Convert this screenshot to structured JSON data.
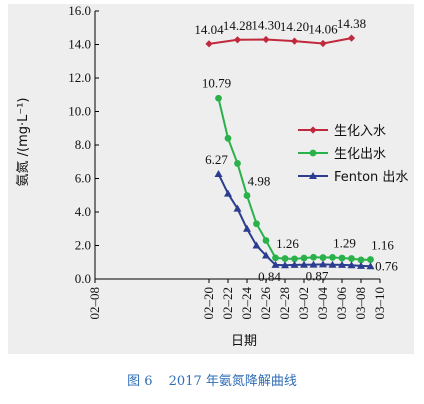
{
  "figure": {
    "caption_number": "图 6",
    "caption_text": "2017 年氨氮降解曲线"
  },
  "chart_data": {
    "type": "line",
    "xlabel": "日期",
    "ylabel": "氨氮 /(mg·L⁻¹)",
    "ylim": [
      0,
      16
    ],
    "yticks": [
      "0.0",
      "2.0",
      "4.0",
      "6.0",
      "8.0",
      "10.0",
      "12.0",
      "14.0",
      "16.0"
    ],
    "x_ticks": [
      "02–08",
      "02–20",
      "02–22",
      "02–24",
      "02–26",
      "02–28",
      "03–02",
      "03–04",
      "03–06",
      "03–08",
      "03–10"
    ],
    "x_tick_positions": [
      -12,
      0,
      2,
      4,
      6,
      8,
      10,
      12,
      14,
      16,
      18
    ],
    "xlim": [
      -12,
      18
    ],
    "series": [
      {
        "name": "生化入水",
        "color": "#c0283c",
        "marker": "diamond",
        "x": [
          0,
          3,
          6,
          9,
          12,
          15
        ],
        "y": [
          14.04,
          14.28,
          14.3,
          14.2,
          14.06,
          14.38
        ],
        "labels": [
          {
            "i": 0,
            "text": "14.04"
          },
          {
            "i": 1,
            "text": "14.28"
          },
          {
            "i": 2,
            "text": "14.30"
          },
          {
            "i": 3,
            "text": "14.20"
          },
          {
            "i": 4,
            "text": "14.06"
          },
          {
            "i": 5,
            "text": "14.38"
          }
        ]
      },
      {
        "name": "生化出水",
        "color": "#2ab24a",
        "marker": "circle",
        "x": [
          1,
          2,
          3,
          4,
          5,
          6,
          7,
          8,
          9,
          10,
          11,
          12,
          13,
          14,
          15,
          16,
          17
        ],
        "y": [
          10.79,
          8.4,
          6.9,
          4.98,
          3.3,
          2.3,
          1.26,
          1.22,
          1.2,
          1.25,
          1.3,
          1.28,
          1.29,
          1.25,
          1.22,
          1.14,
          1.16
        ],
        "labels": [
          {
            "i": 0,
            "text": "10.79"
          },
          {
            "i": 3,
            "text": "4.98"
          },
          {
            "i": 6,
            "text": "1.26"
          },
          {
            "i": 12,
            "text": "1.29"
          },
          {
            "i": 16,
            "text": "1.16"
          }
        ]
      },
      {
        "name": "Fenton 出水",
        "color": "#2b3d8f",
        "marker": "triangle",
        "x": [
          1,
          2,
          3,
          4,
          5,
          6,
          7,
          8,
          9,
          10,
          11,
          12,
          13,
          14,
          15,
          16,
          17
        ],
        "y": [
          6.27,
          5.1,
          4.2,
          3.0,
          2.0,
          1.4,
          0.84,
          0.82,
          0.84,
          0.85,
          0.86,
          0.87,
          0.85,
          0.84,
          0.82,
          0.78,
          0.76
        ],
        "labels": [
          {
            "i": 0,
            "text": "6.27"
          },
          {
            "i": 6,
            "text": "0.84"
          },
          {
            "i": 11,
            "text": "0.87"
          },
          {
            "i": 16,
            "text": "0.76"
          }
        ]
      }
    ],
    "legend_position": "right-middle",
    "grid": false
  }
}
